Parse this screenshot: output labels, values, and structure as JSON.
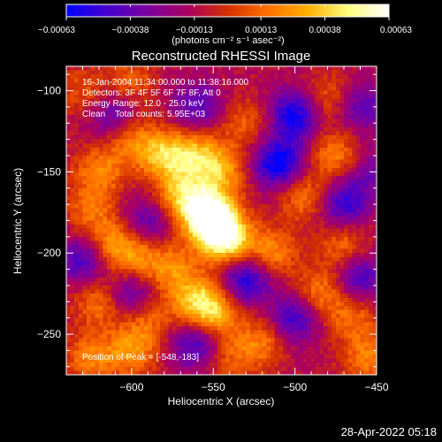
{
  "chart_data": {
    "type": "heatmap",
    "title": "Reconstructed RHESSI Image",
    "xlabel": "Heliocentric X (arcsec)",
    "ylabel": "Heliocentric Y (arcsec)",
    "xlim": [
      -640,
      -450
    ],
    "ylim": [
      -275,
      -85
    ],
    "xticks": [
      -600,
      -550,
      -500,
      -450
    ],
    "xtick_labels": [
      "−600",
      "−550",
      "−500",
      "−450"
    ],
    "yticks": [
      -100,
      -150,
      -200,
      -250
    ],
    "ytick_labels": [
      "−100",
      "−150",
      "−200",
      "−250"
    ],
    "colorbar": {
      "min": -0.00063,
      "max": 0.00063,
      "ticks": [
        -0.00063,
        -0.00038,
        -0.00013,
        0.00013,
        0.00038,
        0.00063
      ],
      "tick_labels": [
        "−0.00063",
        "−0.00038",
        "−0.00013",
        "0.00013",
        "0.00038",
        "0.00063"
      ],
      "units_label": "(photons cm⁻² s⁻¹ asec⁻²)",
      "colors": [
        "#0000ff",
        "#4400cc",
        "#7a00a0",
        "#aa0060",
        "#d43000",
        "#ff7000",
        "#ffb000",
        "#ffff80",
        "#ffffff"
      ]
    },
    "annotations": [
      "16-Jan-2004 11:34:00.000 to 11:38:16.000",
      "Detectors: 3F 4F 5F 6F 7F 8F, Att 0",
      "Energy Range: 12.0 - 25.0 keV",
      "Clean    Total counts: 5.95E+03"
    ],
    "peak_label": "Position of Peak = [-548,-183]",
    "peak": [
      -548,
      -183
    ],
    "blobs": [
      {
        "x": -548,
        "y": -183,
        "v": 0.00063
      },
      {
        "x": -555,
        "y": -175,
        "v": 0.0005
      },
      {
        "x": -540,
        "y": -195,
        "v": 0.00045
      },
      {
        "x": -570,
        "y": -165,
        "v": 0.00042
      },
      {
        "x": -580,
        "y": -140,
        "v": 0.00045
      },
      {
        "x": -560,
        "y": -140,
        "v": 0.0004
      },
      {
        "x": -545,
        "y": -150,
        "v": 0.00035
      },
      {
        "x": -600,
        "y": -130,
        "v": 0.0003
      },
      {
        "x": -620,
        "y": -150,
        "v": 0.00032
      },
      {
        "x": -625,
        "y": -175,
        "v": 0.00025
      },
      {
        "x": -610,
        "y": -195,
        "v": 0.00035
      },
      {
        "x": -595,
        "y": -205,
        "v": 0.00028
      },
      {
        "x": -620,
        "y": -230,
        "v": 0.0003
      },
      {
        "x": -600,
        "y": -260,
        "v": 0.00035
      },
      {
        "x": -625,
        "y": -265,
        "v": 0.0003
      },
      {
        "x": -560,
        "y": -230,
        "v": 0.00045
      },
      {
        "x": -548,
        "y": -238,
        "v": 0.00038
      },
      {
        "x": -575,
        "y": -210,
        "v": 0.0003
      },
      {
        "x": -515,
        "y": -200,
        "v": 0.00035
      },
      {
        "x": -495,
        "y": -165,
        "v": 0.0003
      },
      {
        "x": -475,
        "y": -140,
        "v": 0.00032
      },
      {
        "x": -470,
        "y": -195,
        "v": 0.00028
      },
      {
        "x": -485,
        "y": -225,
        "v": 0.00032
      },
      {
        "x": -465,
        "y": -240,
        "v": 0.00025
      },
      {
        "x": -520,
        "y": -255,
        "v": 0.00028
      },
      {
        "x": -480,
        "y": -105,
        "v": 0.00025
      },
      {
        "x": -530,
        "y": -120,
        "v": 0.00022
      },
      {
        "x": -600,
        "y": -95,
        "v": 0.00024
      },
      {
        "x": -630,
        "y": -100,
        "v": 0.0002
      },
      {
        "x": -590,
        "y": -240,
        "v": 0.00025
      },
      {
        "x": -540,
        "y": -265,
        "v": 0.00022
      },
      {
        "x": -455,
        "y": -265,
        "v": 0.0003
      },
      {
        "x": -510,
        "y": -145,
        "v": -0.00055
      },
      {
        "x": -500,
        "y": -115,
        "v": -0.0005
      },
      {
        "x": -470,
        "y": -170,
        "v": -0.0004
      },
      {
        "x": -530,
        "y": -215,
        "v": -0.0005
      },
      {
        "x": -590,
        "y": -180,
        "v": -0.0003
      },
      {
        "x": -630,
        "y": -205,
        "v": -0.00035
      },
      {
        "x": -560,
        "y": -110,
        "v": -0.0003
      },
      {
        "x": -610,
        "y": -115,
        "v": -0.0003
      },
      {
        "x": -500,
        "y": -240,
        "v": -0.0004
      },
      {
        "x": -560,
        "y": -255,
        "v": -0.0004
      },
      {
        "x": -460,
        "y": -215,
        "v": -0.00035
      },
      {
        "x": -600,
        "y": -225,
        "v": -0.00035
      },
      {
        "x": -460,
        "y": -110,
        "v": -0.0003
      },
      {
        "x": -455,
        "y": -150,
        "v": -0.0002
      }
    ]
  },
  "footer_timestamp": "28-Apr-2022 05:18"
}
